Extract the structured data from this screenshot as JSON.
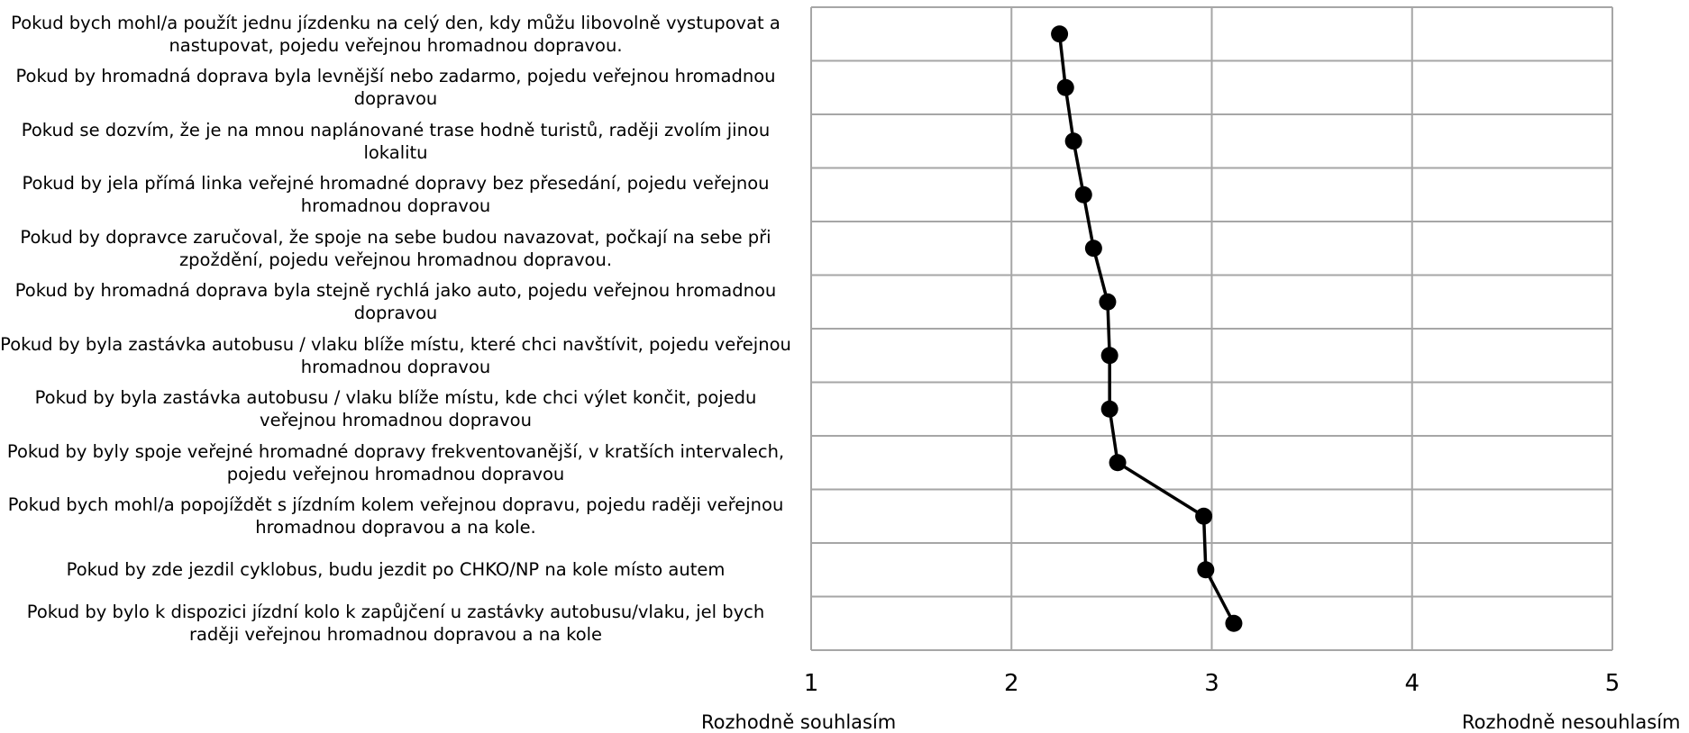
{
  "chart_data": {
    "type": "line",
    "categories": [
      "Pokud bych mohl/a použít jednu jízdenku na celý den, kdy můžu libovolně vystupovat a nastupovat, pojedu veřejnou hromadnou dopravou.",
      "Pokud by hromadná doprava byla levnější nebo zadarmo, pojedu veřejnou hromadnou dopravou",
      "Pokud se dozvím, že je na mnou naplánované trase hodně turistů, raději zvolím jinou lokalitu",
      "Pokud by jela přímá linka veřejné hromadné dopravy bez přesedání, pojedu veřejnou hromadnou dopravou",
      "Pokud by dopravce zaručoval, že spoje na sebe budou navazovat, počkají na sebe při zpoždění, pojedu veřejnou hromadnou dopravou.",
      "Pokud by hromadná doprava byla stejně rychlá jako auto, pojedu veřejnou hromadnou dopravou",
      "Pokud by byla zastávka autobusu / vlaku blíže místu, které chci navštívit, pojedu veřejnou hromadnou dopravou",
      "Pokud by byla zastávka autobusu / vlaku blíže místu, kde chci výlet končit, pojedu veřejnou hromadnou dopravou",
      "Pokud by byly spoje veřejné hromadné dopravy frekventovanější, v kratších intervalech, pojedu veřejnou hromadnou dopravou",
      "Pokud bych mohl/a popojíždět s jízdním kolem veřejnou dopravu, pojedu raději veřejnou hromadnou dopravou a na kole.",
      "Pokud by zde jezdil cyklobus, budu jezdit po CHKO/NP na kole místo autem",
      "Pokud by bylo k dispozici jízdní kolo k zapůjčení u zastávky autobusu/vlaku, jel bych raději veřejnou hromadnou dopravou a na kole"
    ],
    "values": [
      2.24,
      2.27,
      2.31,
      2.36,
      2.41,
      2.48,
      2.49,
      2.49,
      2.53,
      2.96,
      2.97,
      3.11
    ],
    "xlim": [
      1,
      5
    ],
    "xticks": [
      "1",
      "2",
      "3",
      "4",
      "5"
    ],
    "x_left_label": "Rozhodně souhlasím",
    "x_right_label": "Rozhodně nesouhlasím",
    "grid": true,
    "line_color": "#000000",
    "grid_color": "#a6a6a6"
  }
}
